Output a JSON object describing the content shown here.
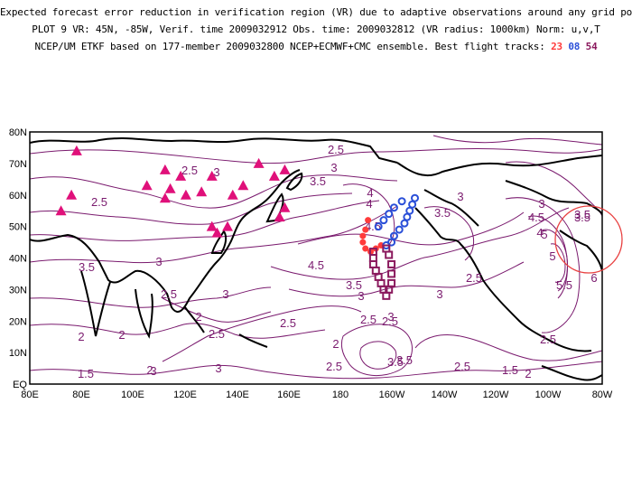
{
  "header": {
    "line1": "Expected forecast error reduction in verification region (VR) due to adaptive observations around any grid point.",
    "line2": "PLOT 9 VR: 45N, -85W, Verif. time 2009032912 Obs. time: 2009032812 (VR radius: 1000km) Norm: u,v,T",
    "line3_prefix": "NCEP/UM ETKF based on 177-member 2009032800 NCEP+ECMWF+CMC ensemble. Best flight tracks:",
    "tracks": [
      {
        "label": "23",
        "color": "#ff3b3b"
      },
      {
        "label": "08",
        "color": "#2a4fd8"
      },
      {
        "label": "54",
        "color": "#8b1a5e"
      }
    ]
  },
  "map": {
    "x_ticks": [
      "80E",
      "80E",
      "100E",
      "120E",
      "140E",
      "160E",
      "180",
      "160W",
      "140W",
      "120W",
      "100W",
      "80W"
    ],
    "y_ticks": [
      "EQ",
      "10N",
      "20N",
      "30N",
      "40N",
      "50N",
      "60N",
      "70N",
      "80N"
    ],
    "contour_color": "#7a1a6e",
    "contour_labels": [
      "2.5",
      "3",
      "2.5",
      "3",
      "3.5",
      "2.5",
      "4",
      "4",
      "4.5",
      "3.5",
      "3",
      "3",
      "4",
      "4.5",
      "5",
      "3.5",
      "2.5",
      "3.5",
      "3",
      "3.5",
      "3",
      "4.5",
      "2.5",
      "3",
      "2.5",
      "3",
      "3.5",
      "3",
      "2",
      "2.5",
      "2.5",
      "3",
      "2",
      "2",
      "3.5",
      "2.5",
      "2",
      "2.5",
      "2",
      "2.5",
      "1.5",
      "3",
      "1.5",
      "2",
      "2.5",
      "5",
      "5.5",
      "6",
      "3.5"
    ],
    "triangle_color": "#e0107a",
    "verification_circle_color": "#e84040"
  },
  "chart_data": {
    "type": "map",
    "verification_region": {
      "lat": 45,
      "lon": -85,
      "radius_km": 1000
    },
    "tracks": [
      {
        "name": "23",
        "color": "#ff3b3b",
        "marker": "filled-circle",
        "points": [
          [
            -170,
            52
          ],
          [
            -171,
            49
          ],
          [
            -172,
            47
          ],
          [
            -172,
            45
          ],
          [
            -171,
            43
          ],
          [
            -169,
            42
          ],
          [
            -167,
            43
          ],
          [
            -165,
            44
          ]
        ]
      },
      {
        "name": "08",
        "color": "#2a4fd8",
        "marker": "open-circle",
        "points": [
          [
            -163,
            44
          ],
          [
            -161,
            45
          ],
          [
            -160,
            47
          ],
          [
            -158,
            49
          ],
          [
            -156,
            51
          ],
          [
            -155,
            53
          ],
          [
            -154,
            55
          ],
          [
            -153,
            57
          ],
          [
            -152,
            59
          ],
          [
            -157,
            58
          ],
          [
            -160,
            56
          ],
          [
            -162,
            54
          ],
          [
            -164,
            52
          ],
          [
            -166,
            50
          ]
        ]
      },
      {
        "name": "54",
        "color": "#8b1a5e",
        "marker": "open-square",
        "points": [
          [
            -168,
            42
          ],
          [
            -168,
            40
          ],
          [
            -168,
            38
          ],
          [
            -167,
            36
          ],
          [
            -166,
            34
          ],
          [
            -165,
            32
          ],
          [
            -164,
            30
          ],
          [
            -163,
            28
          ],
          [
            -162,
            30
          ],
          [
            -161,
            32
          ],
          [
            -161,
            35
          ],
          [
            -161,
            38
          ],
          [
            -162,
            41
          ],
          [
            -163,
            43
          ]
        ]
      }
    ],
    "triangles": [
      [
        72,
        55
      ],
      [
        76,
        60
      ],
      [
        78,
        74
      ],
      [
        105,
        63
      ],
      [
        112,
        59
      ],
      [
        112,
        68
      ],
      [
        114,
        62
      ],
      [
        118,
        66
      ],
      [
        120,
        60
      ],
      [
        126,
        61
      ],
      [
        130,
        66
      ],
      [
        138,
        60
      ],
      [
        142,
        63
      ],
      [
        148,
        70
      ],
      [
        154,
        66
      ],
      [
        158,
        68
      ],
      [
        130,
        50
      ],
      [
        132,
        48
      ],
      [
        136,
        50
      ],
      [
        156,
        53
      ],
      [
        158,
        56
      ]
    ]
  }
}
